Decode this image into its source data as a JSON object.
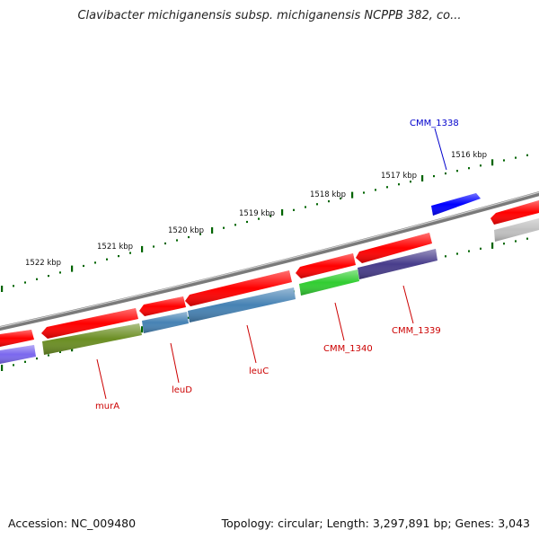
{
  "title": "Clavibacter michiganensis subsp. michiganensis NCPPB 382, co...",
  "footer": {
    "accession": "Accession: NC_009480",
    "stats": "Topology: circular; Length: 3,297,891 bp; Genes: 3,043"
  },
  "ticks": [
    {
      "label": "1516 kbp"
    },
    {
      "label": "1517 kbp"
    },
    {
      "label": "1518 kbp"
    },
    {
      "label": "1519 kbp"
    },
    {
      "label": "1520 kbp"
    },
    {
      "label": "1521 kbp"
    },
    {
      "label": "1522 kbp"
    }
  ],
  "gene_labels": [
    {
      "text": "CMM_1338",
      "color": "#0000cc"
    },
    {
      "text": "murA",
      "color": "#cc0000"
    },
    {
      "text": "leuD",
      "color": "#cc0000"
    },
    {
      "text": "leuC",
      "color": "#cc0000"
    },
    {
      "text": "CMM_1340",
      "color": "#cc0000"
    },
    {
      "text": "CMM_1339",
      "color": "#cc0000"
    }
  ],
  "colors": {
    "cds": "#ff0000",
    "cmm_1338": "#0000ff",
    "mura_cog": "#6b8e23",
    "leu_cog": "#4682b4",
    "cmm_1340_cog": "#32cd32",
    "cmm_1339_cog": "#483d8b",
    "left_cog": "#7b68ee",
    "right_cog": "#c0c0c0",
    "backbone": "#808080",
    "tick": "#006400"
  }
}
